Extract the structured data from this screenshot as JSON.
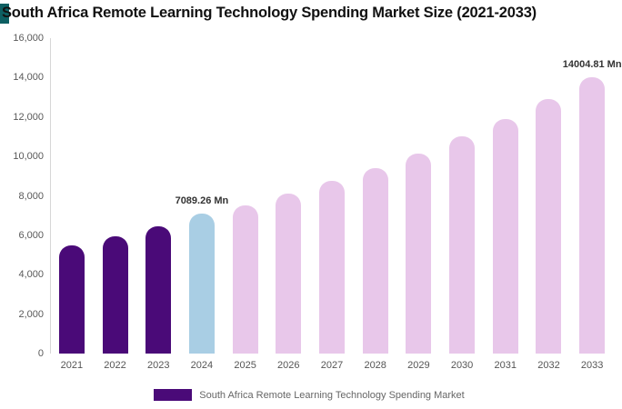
{
  "logo": {
    "color": "#0d5f62"
  },
  "chart_data": {
    "type": "bar",
    "title": "South Africa Remote Learning Technology Spending Market Size (2021-2033)",
    "categories": [
      "2021",
      "2022",
      "2023",
      "2024",
      "2025",
      "2026",
      "2027",
      "2028",
      "2029",
      "2030",
      "2031",
      "2032",
      "2033"
    ],
    "values": [
      5500,
      5950,
      6450,
      7089.26,
      7500,
      8100,
      8750,
      9400,
      10150,
      11000,
      11900,
      12900,
      14004.81
    ],
    "bar_colors": [
      "#4a0a78",
      "#4a0a78",
      "#4a0a78",
      "#a9cee4",
      "#e8c7ea",
      "#e8c7ea",
      "#e8c7ea",
      "#e8c7ea",
      "#e8c7ea",
      "#e8c7ea",
      "#e8c7ea",
      "#e8c7ea",
      "#e8c7ea"
    ],
    "ylim": [
      0,
      16000
    ],
    "y_tick_labels": [
      "0",
      "2,000",
      "4,000",
      "6,000",
      "8,000",
      "10,000",
      "12,000",
      "14,000",
      "16,000"
    ],
    "grid": "off",
    "legend_position": "bottom",
    "annotations": [
      {
        "index": 3,
        "text": "7089.26 Mn"
      },
      {
        "index": 12,
        "text": "14004.81 Mn"
      }
    ],
    "legend": {
      "label": "South Africa Remote Learning Technology Spending Market",
      "color": "#4a0a78"
    }
  }
}
